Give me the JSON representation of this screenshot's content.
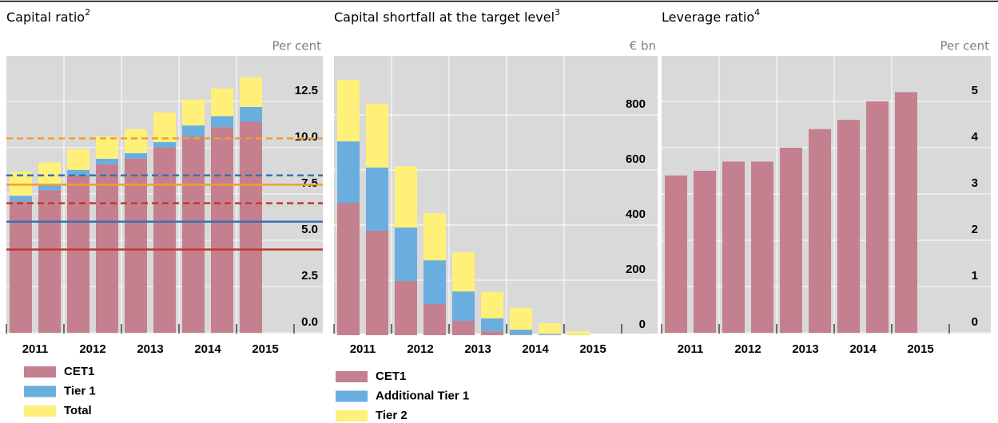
{
  "chart_data": [
    {
      "type": "bar",
      "stacked": true,
      "title": "Capital ratio",
      "title_note": "2",
      "unit": "Per cent",
      "categories": [
        "2011",
        null,
        "2012",
        null,
        "2013",
        null,
        "2014",
        null,
        "2015",
        null
      ],
      "series": [
        {
          "name": "CET1",
          "color": "#c4808e",
          "values": [
            7.1,
            7.7,
            8.5,
            9.1,
            9.4,
            10.0,
            10.6,
            11.1,
            11.4,
            null
          ]
        },
        {
          "name": "Tier 1",
          "color": "#6aaee0",
          "values": [
            0.3,
            0.3,
            0.3,
            0.3,
            0.3,
            0.3,
            0.6,
            0.6,
            0.8,
            null
          ]
        },
        {
          "name": "Total",
          "color": "#fff07a",
          "values": [
            1.3,
            1.2,
            1.1,
            1.2,
            1.3,
            1.6,
            1.4,
            1.5,
            1.6,
            null
          ]
        }
      ],
      "reference_lines": [
        {
          "value": 10.5,
          "color": "#f0a030",
          "style": "dashed"
        },
        {
          "value": 8.5,
          "color": "#3a6fb5",
          "style": "dashed"
        },
        {
          "value": 8.0,
          "color": "#f0a030",
          "style": "solid"
        },
        {
          "value": 7.0,
          "color": "#c0392b",
          "style": "dashed"
        },
        {
          "value": 6.0,
          "color": "#3a6fb5",
          "style": "solid"
        },
        {
          "value": 4.5,
          "color": "#c0392b",
          "style": "solid"
        }
      ],
      "ylim": [
        0,
        15
      ],
      "yticks": [
        {
          "value": 0,
          "label": "0.0"
        },
        2.5,
        {
          "value": 5,
          "label": "5.0"
        },
        7.5,
        {
          "value": 10,
          "label": "10.0"
        },
        12.5
      ],
      "grid": true
    },
    {
      "type": "bar",
      "stacked": true,
      "title": "Capital shortfall at the target level",
      "title_note": "3",
      "unit": "€ bn",
      "categories": [
        "2011",
        null,
        "2012",
        null,
        "2013",
        null,
        "2014",
        null,
        "2015",
        null
      ],
      "series": [
        {
          "name": "CET1",
          "color": "#c4808e",
          "values": [
            481,
            380,
            197,
            113,
            52,
            14,
            2,
            1,
            0,
            null
          ]
        },
        {
          "name": "Additional Tier 1",
          "color": "#6aaee0",
          "values": [
            223,
            229,
            194,
            159,
            107,
            47,
            18,
            4,
            1,
            null
          ]
        },
        {
          "name": "Tier 2",
          "color": "#fff07a",
          "values": [
            224,
            232,
            223,
            171,
            142,
            96,
            79,
            38,
            13,
            null
          ]
        }
      ],
      "ylim": [
        0,
        1000
      ],
      "yticks": [
        0,
        200,
        400,
        600,
        800
      ],
      "grid": true
    },
    {
      "type": "bar",
      "title": "Leverage ratio",
      "title_note": "4",
      "unit": "Per cent",
      "categories": [
        "2011",
        null,
        "2012",
        null,
        "2013",
        null,
        "2014",
        null,
        "2015",
        null
      ],
      "values": [
        3.4,
        3.5,
        3.7,
        3.7,
        4.0,
        4.4,
        4.6,
        5.0,
        5.2,
        null
      ],
      "color": "#c4808e",
      "ylim": [
        0,
        6
      ],
      "yticks": [
        0,
        1,
        2,
        3,
        4,
        5
      ],
      "grid": true
    }
  ]
}
